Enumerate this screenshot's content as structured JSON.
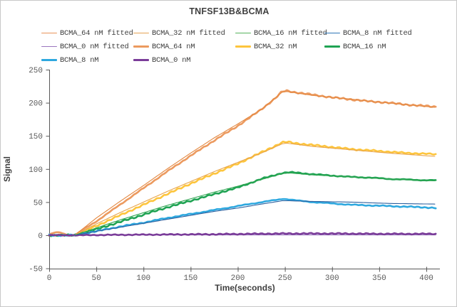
{
  "title": "TNFSF13B&BCMA",
  "legend": {
    "items": [
      {
        "label": "BCMA_64 nM fitted",
        "color": "#E8945A",
        "thick": false
      },
      {
        "label": "BCMA_32 nM fitted",
        "color": "#E5A353",
        "thick": false
      },
      {
        "label": "BCMA_16 nM fitted",
        "color": "#55B25C",
        "thick": false
      },
      {
        "label": "BCMA_8 nM fitted",
        "color": "#2E75B6",
        "thick": false
      },
      {
        "label": "BCMA_0 nM fitted",
        "color": "#9A76BE",
        "thick": false
      },
      {
        "label": "BCMA_64 nM",
        "color": "#EC9A5F",
        "thick": true
      },
      {
        "label": "BCMA_32 nM",
        "color": "#FDC53D",
        "thick": true
      },
      {
        "label": "BCMA_16 nM",
        "color": "#1FA353",
        "thick": true
      },
      {
        "label": "BCMA_8 nM",
        "color": "#2EA8DF",
        "thick": true
      },
      {
        "label": "BCMA_0 nM",
        "color": "#7A3C99",
        "thick": true
      }
    ]
  },
  "chart_data": {
    "type": "line",
    "title": "TNFSF13B&BCMA",
    "xlabel": "Time(seconds)",
    "ylabel": "Signal",
    "xlim": [
      0,
      412
    ],
    "ylim": [
      -50,
      250
    ],
    "x_ticks": [
      0,
      50,
      100,
      150,
      200,
      250,
      300,
      350,
      400
    ],
    "y_ticks": [
      -50,
      0,
      50,
      100,
      150,
      200,
      250
    ],
    "grid": false,
    "legend_position": "top",
    "axis_color": "#595959",
    "series": [
      {
        "name": "BCMA_64 nM",
        "role": "data",
        "color": "#EC9A5F",
        "width": 2.6,
        "noise": 1.2,
        "points": [
          [
            0,
            1
          ],
          [
            6,
            4
          ],
          [
            12,
            4
          ],
          [
            18,
            1
          ],
          [
            24,
            0
          ],
          [
            27,
            0
          ],
          [
            50,
            21
          ],
          [
            75,
            46
          ],
          [
            100,
            71
          ],
          [
            125,
            96
          ],
          [
            150,
            120
          ],
          [
            175,
            143
          ],
          [
            200,
            165
          ],
          [
            225,
            190
          ],
          [
            240,
            207
          ],
          [
            247,
            217
          ],
          [
            252,
            218
          ],
          [
            260,
            216
          ],
          [
            280,
            212
          ],
          [
            300,
            208
          ],
          [
            320,
            205
          ],
          [
            340,
            202
          ],
          [
            360,
            200
          ],
          [
            380,
            197
          ],
          [
            400,
            195
          ],
          [
            410,
            194
          ]
        ]
      },
      {
        "name": "BCMA_32 nM",
        "role": "data",
        "color": "#FDC53D",
        "width": 2.6,
        "noise": 1.2,
        "points": [
          [
            0,
            0
          ],
          [
            27,
            0
          ],
          [
            50,
            14
          ],
          [
            75,
            30
          ],
          [
            100,
            46
          ],
          [
            125,
            62
          ],
          [
            150,
            78
          ],
          [
            175,
            93
          ],
          [
            200,
            108
          ],
          [
            225,
            125
          ],
          [
            240,
            135
          ],
          [
            247,
            140
          ],
          [
            252,
            141
          ],
          [
            260,
            139
          ],
          [
            280,
            136
          ],
          [
            300,
            133
          ],
          [
            320,
            130
          ],
          [
            340,
            128
          ],
          [
            360,
            126
          ],
          [
            380,
            124
          ],
          [
            400,
            123
          ],
          [
            410,
            122
          ]
        ]
      },
      {
        "name": "BCMA_16 nM",
        "role": "data",
        "color": "#1FA353",
        "width": 2.6,
        "noise": 1.2,
        "points": [
          [
            0,
            0
          ],
          [
            27,
            0
          ],
          [
            50,
            9
          ],
          [
            75,
            20
          ],
          [
            100,
            31
          ],
          [
            125,
            42
          ],
          [
            150,
            52
          ],
          [
            175,
            62
          ],
          [
            200,
            72
          ],
          [
            225,
            85
          ],
          [
            240,
            91
          ],
          [
            247,
            94
          ],
          [
            255,
            95
          ],
          [
            265,
            94
          ],
          [
            280,
            92
          ],
          [
            300,
            90
          ],
          [
            320,
            88
          ],
          [
            340,
            87
          ],
          [
            360,
            85
          ],
          [
            380,
            84
          ],
          [
            400,
            83
          ],
          [
            410,
            83
          ]
        ]
      },
      {
        "name": "BCMA_8 nM",
        "role": "data",
        "color": "#2EA8DF",
        "width": 2.6,
        "noise": 1.2,
        "points": [
          [
            0,
            0
          ],
          [
            27,
            0
          ],
          [
            50,
            6
          ],
          [
            75,
            13
          ],
          [
            100,
            19
          ],
          [
            125,
            26
          ],
          [
            150,
            32
          ],
          [
            175,
            38
          ],
          [
            200,
            44
          ],
          [
            225,
            50
          ],
          [
            240,
            53
          ],
          [
            248,
            55
          ],
          [
            255,
            54
          ],
          [
            265,
            52
          ],
          [
            280,
            50
          ],
          [
            300,
            48
          ],
          [
            320,
            46
          ],
          [
            340,
            45
          ],
          [
            360,
            44
          ],
          [
            380,
            43
          ],
          [
            400,
            42
          ],
          [
            410,
            41
          ]
        ]
      },
      {
        "name": "BCMA_0 nM fitted",
        "role": "fitted",
        "color": "#9A76BE",
        "width": 1.2,
        "noise": 0,
        "points": [
          [
            0,
            0.5
          ],
          [
            410,
            0.5
          ]
        ]
      },
      {
        "name": "BCMA_0 nM",
        "role": "data",
        "color": "#7A3C99",
        "width": 2.6,
        "noise": 0.9,
        "points": [
          [
            0,
            0
          ],
          [
            30,
            0
          ],
          [
            60,
            0.5
          ],
          [
            120,
            1
          ],
          [
            180,
            1.5
          ],
          [
            250,
            2.5
          ],
          [
            300,
            2.5
          ],
          [
            360,
            2
          ],
          [
            410,
            2
          ]
        ]
      },
      {
        "name": "BCMA_64 nM fitted",
        "role": "fitted",
        "color": "#E3873F",
        "width": 1.1,
        "noise": 0,
        "points": [
          [
            27,
            0
          ],
          [
            50,
            26
          ],
          [
            75,
            51
          ],
          [
            100,
            75
          ],
          [
            125,
            100
          ],
          [
            150,
            124
          ],
          [
            175,
            147
          ],
          [
            200,
            168
          ],
          [
            225,
            190
          ],
          [
            247,
            216
          ],
          [
            252,
            217
          ],
          [
            280,
            211
          ],
          [
            310,
            207
          ],
          [
            350,
            201
          ],
          [
            410,
            193
          ]
        ]
      },
      {
        "name": "BCMA_32 nM fitted",
        "role": "fitted",
        "color": "#E8A44A",
        "width": 1.1,
        "noise": 0,
        "points": [
          [
            27,
            0
          ],
          [
            50,
            17
          ],
          [
            75,
            34
          ],
          [
            100,
            50
          ],
          [
            125,
            66
          ],
          [
            150,
            81
          ],
          [
            175,
            96
          ],
          [
            200,
            110
          ],
          [
            225,
            124
          ],
          [
            247,
            138
          ],
          [
            252,
            139
          ],
          [
            280,
            134
          ],
          [
            320,
            129
          ],
          [
            360,
            124
          ],
          [
            410,
            119
          ]
        ]
      },
      {
        "name": "BCMA_16 nM fitted",
        "role": "fitted",
        "color": "#2FA551",
        "width": 1.1,
        "noise": 0,
        "points": [
          [
            27,
            0
          ],
          [
            50,
            11
          ],
          [
            75,
            23
          ],
          [
            100,
            34
          ],
          [
            125,
            45
          ],
          [
            150,
            55
          ],
          [
            175,
            65
          ],
          [
            200,
            74
          ],
          [
            225,
            84
          ],
          [
            247,
            93
          ],
          [
            255,
            94
          ],
          [
            280,
            91
          ],
          [
            320,
            88
          ],
          [
            360,
            85
          ],
          [
            410,
            82
          ]
        ]
      },
      {
        "name": "BCMA_8 nM fitted",
        "role": "fitted",
        "color": "#2B5F9E",
        "width": 1.1,
        "noise": 0,
        "points": [
          [
            27,
            0
          ],
          [
            50,
            6
          ],
          [
            75,
            12
          ],
          [
            100,
            18
          ],
          [
            125,
            24
          ],
          [
            150,
            30
          ],
          [
            175,
            36
          ],
          [
            200,
            41
          ],
          [
            225,
            47
          ],
          [
            247,
            52
          ],
          [
            255,
            52
          ],
          [
            280,
            51
          ],
          [
            320,
            50
          ],
          [
            360,
            48
          ],
          [
            410,
            47
          ]
        ]
      }
    ]
  }
}
